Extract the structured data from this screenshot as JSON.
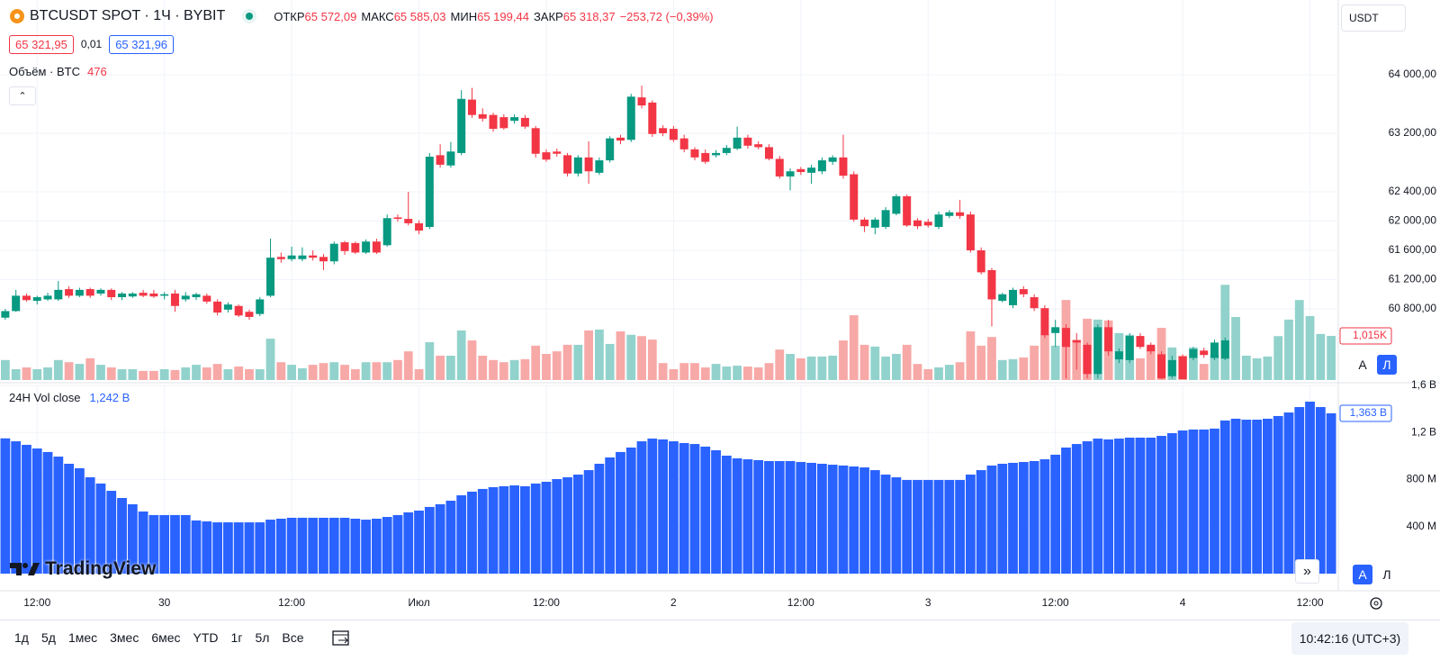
{
  "header": {
    "symbol": "BTCUSDT SPOT · 1Ч · BYBIT",
    "ohlc": [
      {
        "label": "ОТКР",
        "value": "65 572,09"
      },
      {
        "label": "МАКС",
        "value": "65 585,03"
      },
      {
        "label": "МИН",
        "value": "65 199,44"
      },
      {
        "label": "ЗАКР",
        "value": "65 318,37"
      }
    ],
    "change": "−253,72 (−0,39%)",
    "currency": "USDT"
  },
  "quote": {
    "bid": "65 321,95",
    "spread": "0,01",
    "ask": "65 321,96"
  },
  "scale_buttons": [
    "A",
    "Л"
  ],
  "logo": "TradingView",
  "toolbar": {
    "ranges": [
      "1д",
      "5д",
      "1мес",
      "3мес",
      "6мес",
      "YTD",
      "1г",
      "5л",
      "Все"
    ],
    "clock": "10:42:16 (UTC+3)"
  },
  "chart_data": [
    {
      "type": "candlestick",
      "title": "BTCUSDT SPOT · 1Ч · BYBIT",
      "categories": [
        null,
        null,
        null,
        "12:00",
        null,
        null,
        null,
        null,
        null,
        null,
        null,
        null,
        null,
        null,
        null,
        "30",
        null,
        null,
        null,
        null,
        null,
        null,
        null,
        null,
        null,
        null,
        null,
        "12:00",
        null,
        null,
        null,
        null,
        null,
        null,
        null,
        null,
        null,
        null,
        null,
        "Июл",
        null,
        null,
        null,
        null,
        null,
        null,
        null,
        null,
        null,
        null,
        null,
        "12:00",
        null,
        null,
        null,
        null,
        null,
        null,
        null,
        null,
        null,
        null,
        null,
        "2",
        null,
        null,
        null,
        null,
        null,
        null,
        null,
        null,
        null,
        null,
        null,
        "12:00",
        null,
        null,
        null,
        null,
        null,
        null,
        null,
        null,
        null,
        null,
        null,
        "3",
        null,
        null,
        null,
        null,
        null,
        null,
        null,
        null,
        null,
        null,
        null,
        "12:00",
        null,
        null,
        null,
        null,
        null,
        null,
        null,
        null,
        null,
        null,
        null,
        "4",
        null,
        null,
        null,
        null,
        null,
        null,
        null,
        null,
        null,
        null,
        null,
        "12:00",
        null,
        null
      ],
      "ohlc": [
        [
          60680,
          60800,
          60650,
          60770
        ],
        [
          60770,
          61060,
          60760,
          60980
        ],
        [
          60980,
          61010,
          60900,
          60920
        ],
        [
          60910,
          60980,
          60860,
          60960
        ],
        [
          60930,
          61020,
          60910,
          60980
        ],
        [
          60930,
          61180,
          60910,
          61060
        ],
        [
          61070,
          61110,
          60950,
          60980
        ],
        [
          60980,
          61090,
          60960,
          61060
        ],
        [
          61070,
          61090,
          60950,
          60980
        ],
        [
          61010,
          61080,
          60980,
          61060
        ],
        [
          61060,
          61080,
          60920,
          60960
        ],
        [
          60960,
          61030,
          60920,
          61010
        ],
        [
          60970,
          61030,
          60950,
          61010
        ],
        [
          61020,
          61060,
          60960,
          60980
        ],
        [
          61010,
          61060,
          60950,
          60970
        ],
        [
          60980,
          61030,
          60930,
          61000
        ],
        [
          61010,
          61060,
          60760,
          60840
        ],
        [
          60930,
          61030,
          60900,
          60980
        ],
        [
          60960,
          61020,
          60920,
          61000
        ],
        [
          60980,
          61010,
          60870,
          60900
        ],
        [
          60900,
          60930,
          60710,
          60750
        ],
        [
          60790,
          60890,
          60750,
          60860
        ],
        [
          60840,
          60860,
          60690,
          60710
        ],
        [
          60760,
          60790,
          60650,
          60690
        ],
        [
          60730,
          60960,
          60700,
          60930
        ],
        [
          60980,
          61760,
          60960,
          61500
        ],
        [
          61510,
          61570,
          61430,
          61480
        ],
        [
          61480,
          61650,
          61450,
          61530
        ],
        [
          61480,
          61640,
          61450,
          61530
        ],
        [
          61530,
          61600,
          61460,
          61500
        ],
        [
          61510,
          61550,
          61330,
          61450
        ],
        [
          61450,
          61720,
          61410,
          61690
        ],
        [
          61710,
          61730,
          61540,
          61590
        ],
        [
          61700,
          61720,
          61550,
          61570
        ],
        [
          61570,
          61750,
          61550,
          61720
        ],
        [
          61720,
          61760,
          61550,
          61570
        ],
        [
          61670,
          62090,
          61650,
          62040
        ],
        [
          62050,
          62090,
          61990,
          62030
        ],
        [
          62030,
          62400,
          61940,
          61970
        ],
        [
          61970,
          62010,
          61820,
          61870
        ],
        [
          61920,
          62930,
          61890,
          62880
        ],
        [
          62900,
          63050,
          62730,
          62770
        ],
        [
          62760,
          63080,
          62730,
          62950
        ],
        [
          62930,
          63790,
          62900,
          63670
        ],
        [
          63660,
          63820,
          63410,
          63450
        ],
        [
          63460,
          63540,
          63360,
          63400
        ],
        [
          63450,
          63480,
          63220,
          63260
        ],
        [
          63420,
          63460,
          63250,
          63270
        ],
        [
          63370,
          63460,
          63330,
          63420
        ],
        [
          63410,
          63450,
          63260,
          63290
        ],
        [
          63270,
          63300,
          62870,
          62920
        ],
        [
          62940,
          62980,
          62810,
          62840
        ],
        [
          62950,
          62990,
          62880,
          62920
        ],
        [
          62900,
          62930,
          62610,
          62650
        ],
        [
          62650,
          62900,
          62610,
          62870
        ],
        [
          62870,
          63090,
          62510,
          62680
        ],
        [
          62660,
          62870,
          62630,
          62830
        ],
        [
          62830,
          63160,
          62800,
          63130
        ],
        [
          63140,
          63180,
          63050,
          63100
        ],
        [
          63110,
          63740,
          63080,
          63700
        ],
        [
          63690,
          63850,
          63540,
          63580
        ],
        [
          63620,
          63650,
          63150,
          63190
        ],
        [
          63270,
          63310,
          63160,
          63200
        ],
        [
          63260,
          63300,
          63080,
          63110
        ],
        [
          63130,
          63180,
          62940,
          62980
        ],
        [
          62980,
          63010,
          62830,
          62870
        ],
        [
          62930,
          62980,
          62780,
          62810
        ],
        [
          62900,
          62970,
          62870,
          62930
        ],
        [
          62930,
          63040,
          62900,
          63000
        ],
        [
          62990,
          63290,
          62970,
          63140
        ],
        [
          63140,
          63180,
          62990,
          63030
        ],
        [
          63050,
          63090,
          62980,
          63010
        ],
        [
          63010,
          63050,
          62830,
          62850
        ],
        [
          62850,
          62890,
          62580,
          62610
        ],
        [
          62610,
          62720,
          62420,
          62680
        ],
        [
          62710,
          62740,
          62630,
          62670
        ],
        [
          62660,
          62770,
          62510,
          62730
        ],
        [
          62680,
          62870,
          62640,
          62830
        ],
        [
          62810,
          62900,
          62770,
          62870
        ],
        [
          62870,
          63180,
          62580,
          62620
        ],
        [
          62640,
          62680,
          61990,
          62020
        ],
        [
          62020,
          62050,
          61850,
          61930
        ],
        [
          61910,
          62050,
          61820,
          62020
        ],
        [
          61920,
          62190,
          61890,
          62150
        ],
        [
          62100,
          62370,
          62080,
          62340
        ],
        [
          62340,
          62360,
          61920,
          61940
        ],
        [
          62010,
          62040,
          61890,
          61930
        ],
        [
          61990,
          62030,
          61910,
          61940
        ],
        [
          61920,
          62130,
          61890,
          62090
        ],
        [
          62070,
          62150,
          62040,
          62120
        ],
        [
          62120,
          62290,
          62030,
          62070
        ],
        [
          62090,
          62130,
          61570,
          61600
        ],
        [
          61600,
          61640,
          61270,
          61300
        ],
        [
          61330,
          61360,
          60560,
          60930
        ],
        [
          60910,
          61020,
          60890,
          61000
        ],
        [
          60850,
          61090,
          60810,
          61060
        ],
        [
          61070,
          61110,
          60960,
          61000
        ],
        [
          60960,
          61000,
          60770,
          60810
        ],
        [
          60810,
          60850,
          60400,
          60440
        ],
        [
          60470,
          60650,
          60280,
          60550
        ],
        [
          60540,
          60590,
          59850,
          60280
        ],
        [
          60370,
          60470,
          59970,
          60340
        ],
        [
          60310,
          60340,
          59850,
          59910
        ],
        [
          59910,
          60590,
          59850,
          60550
        ],
        [
          60550,
          60650,
          60160,
          60220
        ],
        [
          60110,
          60260,
          60060,
          60220
        ],
        [
          60100,
          60470,
          60060,
          60430
        ],
        [
          60430,
          60470,
          60250,
          60280
        ],
        [
          60310,
          60340,
          60180,
          60220
        ],
        [
          60180,
          60220,
          59840,
          59850
        ],
        [
          59880,
          60160,
          59850,
          60100
        ],
        [
          60150,
          60180,
          59840,
          59840
        ],
        [
          60130,
          60280,
          60100,
          60250
        ],
        [
          60230,
          60270,
          60130,
          60170
        ],
        [
          60130,
          60380,
          60100,
          60340
        ],
        [
          60120,
          60410,
          60100,
          60370
        ],
        null,
        null,
        null,
        null,
        null,
        null,
        null,
        null,
        null,
        null
      ],
      "up_color": "#089981",
      "down_color": "#f23645",
      "ylim": [
        59828,
        65021
      ],
      "yticks": [
        {
          "value": 64000,
          "label": "64 000,00"
        },
        {
          "value": 63200,
          "label": "63 200,00"
        },
        {
          "value": 62400,
          "label": "62 400,00"
        },
        {
          "value": 62000,
          "label": "62 000,00"
        },
        {
          "value": 61600,
          "label": "61 600,00"
        },
        {
          "value": 61200,
          "label": "61 200,00"
        },
        {
          "value": 60800,
          "label": "60 800,00"
        }
      ],
      "grid": true,
      "volume": {
        "name": "Объём · BTC",
        "legend_value": 476,
        "ylim": [
          0,
          8740
        ],
        "up_color": "#92d2cc",
        "down_color": "#f7a9a7",
        "values": [
          460,
          250,
          290,
          250,
          290,
          460,
          410,
          370,
          500,
          350,
          290,
          250,
          250,
          210,
          210,
          250,
          230,
          290,
          350,
          290,
          370,
          250,
          310,
          250,
          250,
          950,
          410,
          350,
          270,
          350,
          390,
          410,
          350,
          250,
          410,
          410,
          410,
          460,
          660,
          250,
          870,
          560,
          560,
          1140,
          910,
          560,
          460,
          410,
          460,
          480,
          790,
          600,
          660,
          810,
          810,
          1140,
          1160,
          830,
          1120,
          1040,
          1010,
          930,
          390,
          250,
          390,
          390,
          290,
          370,
          310,
          330,
          310,
          290,
          390,
          700,
          600,
          500,
          540,
          540,
          560,
          910,
          1490,
          810,
          770,
          540,
          600,
          810,
          370,
          250,
          290,
          350,
          410,
          1120,
          790,
          990,
          460,
          480,
          520,
          790,
          1040,
          790,
          1840,
          930,
          1410,
          1390,
          1370,
          1080,
          1040,
          500,
          770,
          1200,
          750,
          560,
          750,
          370,
          580,
          2190,
          1450,
          560,
          500,
          540,
          1010,
          1390,
          1840,
          1470,
          1060,
          1015
        ],
        "last_value_label": "1,015K"
      }
    },
    {
      "type": "bar",
      "title": "24H Vol close",
      "legend_label": "1,242 B",
      "color": "#2962ff",
      "values": [
        1150000000.0,
        1125000000.0,
        1095000000.0,
        1064000000.0,
        1034000000.0,
        995000000.0,
        934000000.0,
        896000000.0,
        819000000.0,
        766000000.0,
        704000000.0,
        643000000.0,
        590000000.0,
        528000000.0,
        498000000.0,
        498000000.0,
        498000000.0,
        498000000.0,
        452000000.0,
        444000000.0,
        436000000.0,
        436000000.0,
        436000000.0,
        436000000.0,
        436000000.0,
        459000000.0,
        467000000.0,
        475000000.0,
        475000000.0,
        475000000.0,
        475000000.0,
        475000000.0,
        475000000.0,
        467000000.0,
        459000000.0,
        467000000.0,
        482000000.0,
        498000000.0,
        521000000.0,
        536000000.0,
        567000000.0,
        590000000.0,
        620000000.0,
        666000000.0,
        697000000.0,
        720000000.0,
        735000000.0,
        743000000.0,
        750000000.0,
        743000000.0,
        766000000.0,
        781000000.0,
        804000000.0,
        819000000.0,
        842000000.0,
        880000000.0,
        934000000.0,
        988000000.0,
        1034000000.0,
        1072000000.0,
        1125000000.0,
        1148000000.0,
        1141000000.0,
        1125000000.0,
        1110000000.0,
        1102000000.0,
        1080000000.0,
        1049000000.0,
        1003000000.0,
        980000000.0,
        972000000.0,
        965000000.0,
        957000000.0,
        957000000.0,
        957000000.0,
        949000000.0,
        942000000.0,
        934000000.0,
        926000000.0,
        919000000.0,
        911000000.0,
        903000000.0,
        880000000.0,
        842000000.0,
        819000000.0,
        796000000.0,
        796000000.0,
        796000000.0,
        796000000.0,
        796000000.0,
        796000000.0,
        842000000.0,
        880000000.0,
        919000000.0,
        934000000.0,
        942000000.0,
        949000000.0,
        957000000.0,
        972000000.0,
        1011000000.0,
        1072000000.0,
        1102000000.0,
        1125000000.0,
        1148000000.0,
        1141000000.0,
        1148000000.0,
        1156000000.0,
        1156000000.0,
        1156000000.0,
        1171000000.0,
        1194000000.0,
        1217000000.0,
        1225000000.0,
        1225000000.0,
        1233000000.0,
        1302000000.0,
        1317000000.0,
        1309000000.0,
        1309000000.0,
        1317000000.0,
        1340000000.0,
        1370000000.0,
        1416000000.0,
        1462000000.0,
        1416000000.0,
        1363000000.0
      ],
      "last_value_label": "1,363 B",
      "ylim": [
        0,
        1600000000
      ],
      "yticks": [
        {
          "value": 400000000,
          "label": "400 M"
        },
        {
          "value": 800000000,
          "label": "800 M"
        },
        {
          "value": 1200000000,
          "label": "1,2 B"
        },
        {
          "value": 1600000000,
          "label": "1,6 B"
        }
      ]
    }
  ]
}
